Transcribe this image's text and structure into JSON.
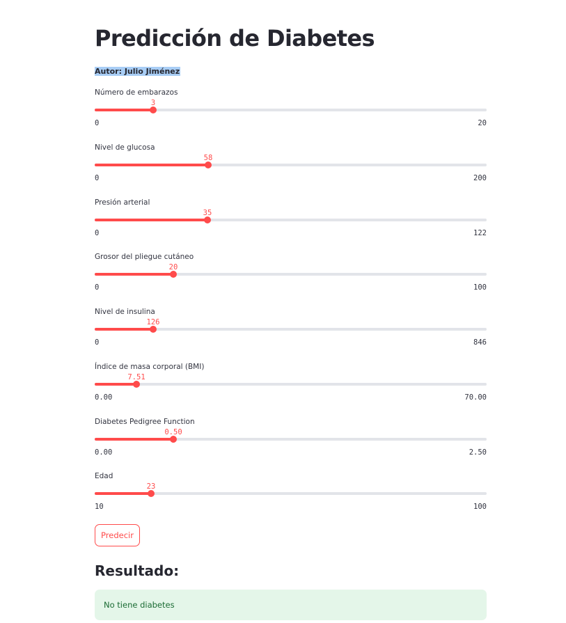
{
  "title": "Predicción de Diabetes",
  "author": "Autor: Julio Jiménez",
  "sliders": [
    {
      "label": "Número de embarazos",
      "value": "3",
      "min": "0",
      "max": "20",
      "fraction": 0.15
    },
    {
      "label": "Nivel de glucosa",
      "value": "58",
      "min": "0",
      "max": "200",
      "fraction": 0.29
    },
    {
      "label": "Presión arterial",
      "value": "35",
      "min": "0",
      "max": "122",
      "fraction": 0.287
    },
    {
      "label": "Grosor del pliegue cutáneo",
      "value": "20",
      "min": "0",
      "max": "100",
      "fraction": 0.2
    },
    {
      "label": "Nivel de insulina",
      "value": "126",
      "min": "0",
      "max": "846",
      "fraction": 0.149
    },
    {
      "label": "Índice de masa corporal (BMI)",
      "value": "7.51",
      "min": "0.00",
      "max": "70.00",
      "fraction": 0.107
    },
    {
      "label": "Diabetes Pedigree Function",
      "value": "0.50",
      "min": "0.00",
      "max": "2.50",
      "fraction": 0.2
    },
    {
      "label": "Edad",
      "value": "23",
      "min": "10",
      "max": "100",
      "fraction": 0.144
    }
  ],
  "predict_button": "Predecir",
  "result_heading": "Resultado:",
  "result_text": "No tiene diabetes",
  "colors": {
    "accent": "#ff4b4b",
    "track": "#e2e4e9",
    "success_bg": "#e4f6e9",
    "success_text": "#1a6b33",
    "author_highlight": "#a8cdf5"
  }
}
